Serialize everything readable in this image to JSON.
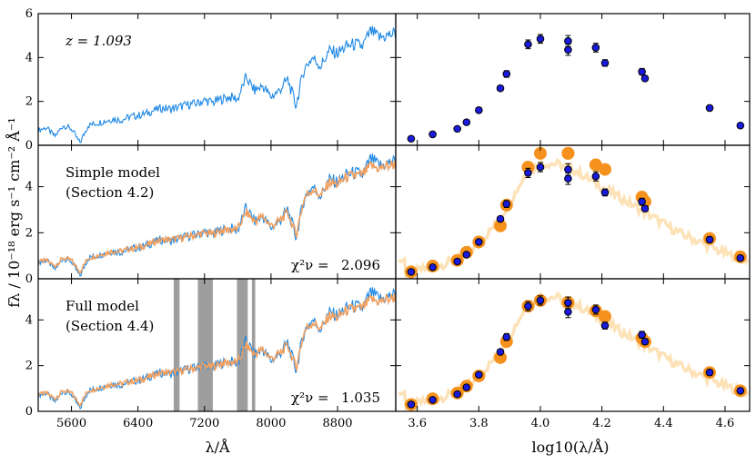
{
  "chart_data": {
    "type": "line",
    "ylabel": "fλ / 10⁻¹⁸ erg s⁻¹ cm⁻² Å⁻¹",
    "xlabel_left": "λ/Å",
    "xlabel_right": "log10(λ/Å)",
    "spectra_xlim": [
      5200,
      9500
    ],
    "spectra_xticks": [
      5600,
      6400,
      7200,
      8000,
      8800
    ],
    "photometry_xlim": [
      3.53,
      4.68
    ],
    "photometry_xticks": [
      "3.6",
      "3.8",
      "4.0",
      "4.2",
      "4.4",
      "4.6"
    ],
    "panels": [
      {
        "label_lines": [
          "z = 1.093"
        ],
        "ylim": [
          0,
          6
        ],
        "yticks": [
          0,
          2,
          4,
          6
        ],
        "show_model": false,
        "chi2_label": "",
        "chi2_value": ""
      },
      {
        "label_lines": [
          "Simple model",
          "(Section 4.2)"
        ],
        "ylim": [
          0,
          5.8
        ],
        "yticks": [
          0,
          2,
          4
        ],
        "show_model": true,
        "chi2_label": "χ²ν =",
        "chi2_value": "2.096"
      },
      {
        "label_lines": [
          "Full model",
          "(Section 4.4)"
        ],
        "ylim": [
          0,
          5.8
        ],
        "yticks": [
          0,
          2,
          4
        ],
        "show_model": true,
        "chi2_label": "χ²ν =",
        "chi2_value": "1.035",
        "masked_regions": [
          [
            6830,
            6900
          ],
          [
            7120,
            7300
          ],
          [
            7590,
            7720
          ],
          [
            7770,
            7810
          ]
        ]
      }
    ],
    "spectrum_observed": {
      "color": "#1e88e5",
      "x": [
        5200,
        5300,
        5400,
        5500,
        5600,
        5700,
        5800,
        5900,
        6000,
        6100,
        6200,
        6300,
        6400,
        6500,
        6600,
        6700,
        6800,
        6900,
        7000,
        7100,
        7200,
        7300,
        7400,
        7500,
        7600,
        7700,
        7800,
        7900,
        8000,
        8100,
        8200,
        8300,
        8400,
        8500,
        8600,
        8700,
        8800,
        8900,
        9000,
        9100,
        9200,
        9300,
        9400,
        9500
      ],
      "y": [
        0.7,
        0.8,
        0.4,
        0.9,
        0.75,
        0.1,
        0.9,
        1.0,
        1.1,
        1.2,
        1.15,
        1.3,
        1.35,
        1.45,
        1.6,
        1.7,
        1.65,
        1.75,
        1.85,
        1.9,
        2.05,
        1.95,
        2.1,
        2.2,
        2.1,
        3.1,
        2.5,
        2.7,
        2.2,
        2.5,
        3.0,
        1.8,
        3.5,
        4.0,
        3.6,
        4.3,
        4.2,
        4.5,
        4.6,
        4.5,
        5.2,
        4.9,
        5.0,
        5.1
      ]
    },
    "spectrum_model": {
      "color": "#f0a060",
      "x": [
        5200,
        5300,
        5400,
        5500,
        5600,
        5700,
        5800,
        5900,
        6000,
        6100,
        6200,
        6300,
        6400,
        6500,
        6600,
        6700,
        6800,
        6900,
        7000,
        7100,
        7200,
        7300,
        7400,
        7500,
        7600,
        7700,
        7800,
        7900,
        8000,
        8100,
        8200,
        8300,
        8400,
        8500,
        8600,
        8700,
        8800,
        8900,
        9000,
        9100,
        9200,
        9300,
        9400,
        9500
      ],
      "y": [
        0.75,
        0.8,
        0.55,
        0.9,
        0.8,
        0.3,
        0.9,
        1.0,
        1.1,
        1.2,
        1.2,
        1.3,
        1.35,
        1.45,
        1.6,
        1.7,
        1.7,
        1.75,
        1.85,
        1.9,
        2.0,
        1.95,
        2.1,
        2.15,
        2.15,
        2.9,
        2.5,
        2.7,
        2.3,
        2.5,
        2.9,
        1.9,
        3.5,
        3.9,
        3.6,
        4.2,
        4.1,
        4.4,
        4.5,
        4.5,
        4.9,
        4.8,
        4.9,
        5.0
      ]
    },
    "photometry": {
      "color": "#1a1adc",
      "x": [
        3.58,
        3.65,
        3.73,
        3.76,
        3.8,
        3.87,
        3.89,
        3.96,
        4.0,
        4.09,
        4.09,
        4.18,
        4.21,
        4.33,
        4.34,
        4.55,
        4.65
      ],
      "y": [
        0.3,
        0.5,
        0.75,
        1.05,
        1.6,
        2.6,
        3.25,
        4.6,
        4.85,
        4.35,
        4.75,
        4.45,
        3.75,
        3.35,
        3.05,
        1.7,
        0.9
      ],
      "yerr": [
        0.05,
        0.05,
        0.05,
        0.06,
        0.08,
        0.1,
        0.15,
        0.2,
        0.2,
        0.25,
        0.25,
        0.2,
        0.15,
        0.15,
        0.12,
        0.12,
        0.05
      ]
    },
    "model_photometry_simple": {
      "color": "#f5921e",
      "x": [
        3.58,
        3.65,
        3.73,
        3.76,
        3.8,
        3.87,
        3.89,
        3.96,
        4.0,
        4.09,
        4.09,
        4.18,
        4.21,
        4.33,
        4.34,
        4.55,
        4.65
      ],
      "y": [
        0.3,
        0.55,
        0.8,
        1.15,
        1.6,
        2.3,
        3.2,
        4.85,
        5.45,
        5.45,
        5.45,
        4.95,
        4.75,
        3.55,
        3.35,
        1.75,
        0.95
      ]
    },
    "model_photometry_full": {
      "color": "#f5921e",
      "x": [
        3.58,
        3.65,
        3.73,
        3.76,
        3.8,
        3.87,
        3.89,
        3.96,
        4.0,
        4.09,
        4.09,
        4.18,
        4.21,
        4.33,
        4.34,
        4.55,
        4.65
      ],
      "y": [
        0.3,
        0.55,
        0.8,
        1.1,
        1.55,
        2.35,
        3.05,
        4.6,
        4.85,
        4.75,
        4.75,
        4.4,
        4.15,
        3.2,
        3.05,
        1.7,
        0.9
      ]
    },
    "model_sed": {
      "color": "#fddba6",
      "x": [
        3.56,
        3.6,
        3.65,
        3.7,
        3.75,
        3.8,
        3.85,
        3.9,
        3.95,
        4.0,
        4.05,
        4.1,
        4.15,
        4.2,
        4.25,
        4.3,
        4.35,
        4.4,
        4.45,
        4.5,
        4.55,
        4.6,
        4.68
      ],
      "y": [
        0.25,
        0.35,
        0.5,
        0.7,
        1.0,
        1.5,
        2.3,
        3.3,
        4.5,
        5.0,
        5.0,
        4.8,
        4.4,
        4.0,
        3.6,
        3.2,
        2.8,
        2.4,
        2.0,
        1.7,
        1.4,
        1.1,
        0.8
      ]
    }
  }
}
